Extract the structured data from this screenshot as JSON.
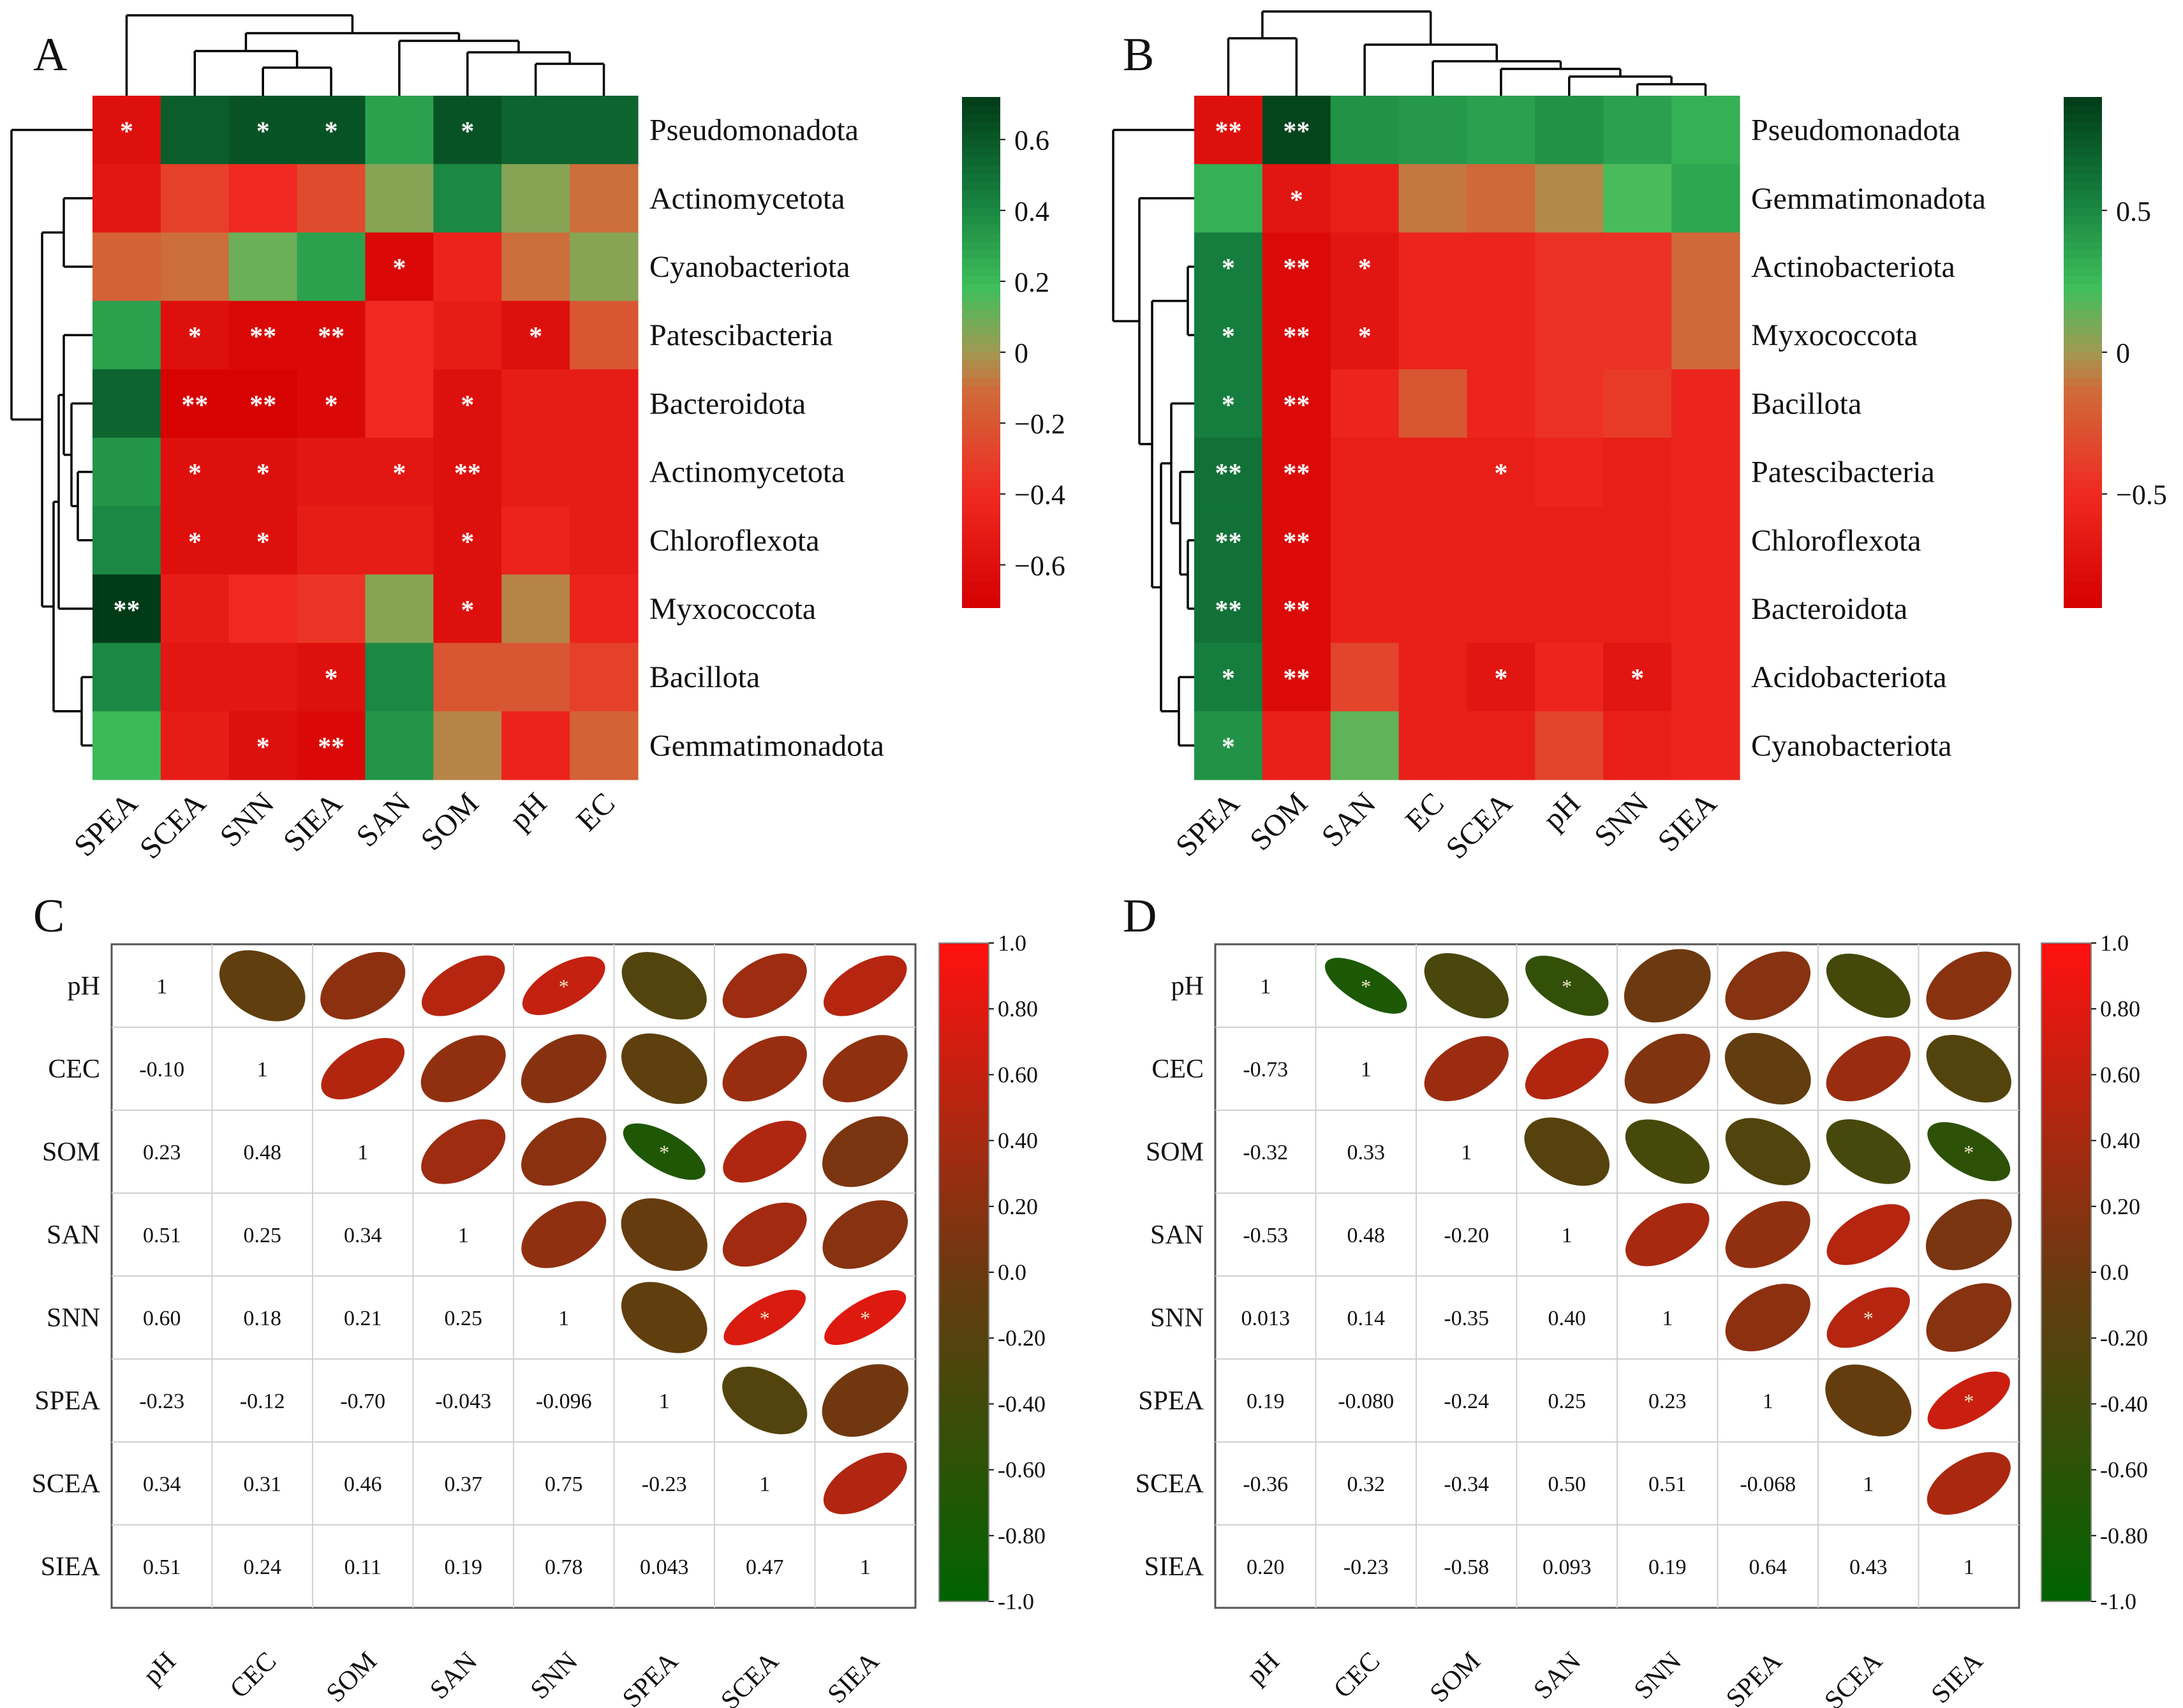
{
  "chart_data": [
    {
      "type": "heatmap",
      "panel": "A",
      "rows": [
        "Pseudomonadota",
        "Actinomycetota",
        "Cyanobacteriota",
        "Patescibacteria",
        "Bacteroidota",
        "Actinomycetota",
        "Chloroflexota",
        "Myxococcota",
        "Bacillota",
        "Gemmatimonadota"
      ],
      "columns": [
        "SPEA",
        "SCEA",
        "SNN",
        "SIEA",
        "SAN",
        "SOM",
        "pH",
        "EC"
      ],
      "values": [
        [
          -0.6,
          0.58,
          0.62,
          0.62,
          0.3,
          0.62,
          0.55,
          0.55
        ],
        [
          -0.55,
          -0.3,
          -0.4,
          -0.25,
          0.05,
          0.4,
          0.05,
          -0.1
        ],
        [
          -0.15,
          -0.1,
          0.1,
          0.3,
          -0.65,
          -0.45,
          -0.1,
          0.05
        ],
        [
          0.3,
          -0.6,
          -0.65,
          -0.65,
          -0.4,
          -0.5,
          -0.6,
          -0.2
        ],
        [
          0.55,
          -0.7,
          -0.7,
          -0.65,
          -0.4,
          -0.6,
          -0.5,
          -0.5
        ],
        [
          0.35,
          -0.6,
          -0.6,
          -0.55,
          -0.55,
          -0.6,
          -0.5,
          -0.5
        ],
        [
          0.4,
          -0.6,
          -0.6,
          -0.5,
          -0.5,
          -0.6,
          -0.45,
          -0.5
        ],
        [
          0.72,
          -0.5,
          -0.4,
          -0.35,
          0.05,
          -0.6,
          -0.05,
          -0.45
        ],
        [
          0.4,
          -0.55,
          -0.55,
          -0.6,
          0.4,
          -0.2,
          -0.2,
          -0.3
        ],
        [
          0.2,
          -0.5,
          -0.6,
          -0.65,
          0.35,
          -0.05,
          -0.45,
          -0.15
        ]
      ],
      "stars": [
        [
          "*",
          "",
          "*",
          "*",
          "",
          "*",
          "",
          ""
        ],
        [
          "",
          "",
          "",
          "",
          "",
          "",
          "",
          ""
        ],
        [
          "",
          "",
          "",
          "",
          "*",
          "",
          "",
          ""
        ],
        [
          "",
          "*",
          "**",
          "**",
          "",
          "",
          "*",
          ""
        ],
        [
          "",
          "**",
          "**",
          "*",
          "",
          "*",
          "",
          ""
        ],
        [
          "",
          "*",
          "*",
          "",
          "*",
          "**",
          "",
          ""
        ],
        [
          "",
          "*",
          "*",
          "",
          "",
          "*",
          "",
          ""
        ],
        [
          "**",
          "",
          "",
          "",
          "",
          "*",
          "",
          ""
        ],
        [
          "",
          "",
          "",
          "*",
          "",
          "",
          "",
          ""
        ],
        [
          "",
          "",
          "*",
          "**",
          "",
          "",
          "",
          ""
        ]
      ],
      "colorbar": {
        "min": -0.72,
        "max": 0.72,
        "ticks": [
          "0.6",
          "0.4",
          "0.2",
          "0",
          "−0.2",
          "−0.4",
          "−0.6"
        ],
        "tick_values": [
          0.6,
          0.4,
          0.2,
          0,
          -0.2,
          -0.4,
          -0.6
        ]
      },
      "colors": {
        "low": "#d40000",
        "mid": "#a08c50",
        "high": "#003d1a"
      }
    },
    {
      "type": "heatmap",
      "panel": "B",
      "rows": [
        "Pseudomonadota",
        "Gemmatimonadota",
        "Actinobacteriota",
        "Myxococcota",
        "Bacillota",
        "Patescibacteria",
        "Chloroflexota",
        "Bacteroidota",
        "Acidobacteriota",
        "Cyanobacteriota"
      ],
      "columns": [
        "SPEA",
        "SOM",
        "SAN",
        "EC",
        "SCEA",
        "pH",
        "SNN",
        "SIEA"
      ],
      "values": [
        [
          -0.75,
          0.85,
          0.45,
          0.42,
          0.38,
          0.45,
          0.38,
          0.3
        ],
        [
          0.3,
          -0.7,
          -0.6,
          -0.1,
          -0.15,
          -0.05,
          0.2,
          0.35
        ],
        [
          0.55,
          -0.8,
          -0.7,
          -0.55,
          -0.55,
          -0.45,
          -0.45,
          -0.15
        ],
        [
          0.55,
          -0.8,
          -0.7,
          -0.55,
          -0.55,
          -0.45,
          -0.45,
          -0.15
        ],
        [
          0.55,
          -0.8,
          -0.55,
          -0.25,
          -0.55,
          -0.45,
          -0.4,
          -0.55
        ],
        [
          0.62,
          -0.8,
          -0.6,
          -0.6,
          -0.6,
          -0.55,
          -0.6,
          -0.55
        ],
        [
          0.62,
          -0.8,
          -0.6,
          -0.6,
          -0.6,
          -0.6,
          -0.6,
          -0.55
        ],
        [
          0.62,
          -0.8,
          -0.6,
          -0.6,
          -0.6,
          -0.6,
          -0.6,
          -0.55
        ],
        [
          0.55,
          -0.8,
          -0.35,
          -0.6,
          -0.7,
          -0.55,
          -0.7,
          -0.55
        ],
        [
          0.45,
          -0.6,
          0.15,
          -0.6,
          -0.6,
          -0.35,
          -0.6,
          -0.55
        ]
      ],
      "stars": [
        [
          "**",
          "**",
          "",
          "",
          "",
          "",
          "",
          ""
        ],
        [
          "",
          "*",
          "",
          "",
          "",
          "",
          "",
          ""
        ],
        [
          "*",
          "**",
          "*",
          "",
          "",
          "",
          "",
          ""
        ],
        [
          "*",
          "**",
          "*",
          "",
          "",
          "",
          "",
          ""
        ],
        [
          "*",
          "**",
          "",
          "",
          "",
          "",
          "",
          ""
        ],
        [
          "**",
          "**",
          "",
          "",
          "*",
          "",
          "",
          ""
        ],
        [
          "**",
          "**",
          "",
          "",
          "",
          "",
          "",
          ""
        ],
        [
          "**",
          "**",
          "",
          "",
          "",
          "",
          "",
          ""
        ],
        [
          "*",
          "**",
          "",
          "",
          "*",
          "",
          "*",
          ""
        ],
        [
          "*",
          "",
          "",
          "",
          "",
          "",
          "",
          ""
        ]
      ],
      "colorbar": {
        "min": -0.9,
        "max": 0.9,
        "ticks": [
          "0.5",
          "0",
          "−0.5"
        ],
        "tick_values": [
          0.5,
          0,
          -0.5
        ]
      },
      "colors": {
        "low": "#d40000",
        "mid": "#a08c50",
        "high": "#003d1a"
      }
    },
    {
      "type": "correlation-matrix",
      "panel": "C",
      "variables": [
        "pH",
        "CEC",
        "SOM",
        "SAN",
        "SNN",
        "SPEA",
        "SCEA",
        "SIEA"
      ],
      "lower_labels": [
        [],
        [
          "-0.10"
        ],
        [
          "0.23",
          "0.48"
        ],
        [
          "0.51",
          "0.25",
          "0.34"
        ],
        [
          "0.60",
          "0.18",
          "0.21",
          "0.25"
        ],
        [
          "-0.23",
          "-0.12",
          "-0.70",
          "-0.043",
          "-0.096"
        ],
        [
          "0.34",
          "0.31",
          "0.46",
          "0.37",
          "0.75",
          "-0.23"
        ],
        [
          "0.51",
          "0.24",
          "0.11",
          "0.19",
          "0.78",
          "0.043",
          "0.47"
        ]
      ],
      "lower_values": [
        [],
        [
          -0.1
        ],
        [
          0.23,
          0.48
        ],
        [
          0.51,
          0.25,
          0.34
        ],
        [
          0.6,
          0.18,
          0.21,
          0.25
        ],
        [
          -0.23,
          -0.12,
          -0.7,
          -0.043,
          -0.096
        ],
        [
          0.34,
          0.31,
          0.46,
          0.37,
          0.75,
          -0.23
        ],
        [
          0.51,
          0.24,
          0.11,
          0.19,
          0.78,
          0.043,
          0.47
        ]
      ],
      "diagonal_label": "1",
      "star_cells": [
        [
          0,
          4
        ],
        [
          2,
          5
        ],
        [
          4,
          6
        ],
        [
          4,
          7
        ]
      ],
      "star_text": "*",
      "colorbar": {
        "min": -1.0,
        "max": 1.0,
        "ticks": [
          "1.0",
          "0.80",
          "0.60",
          "0.40",
          "0.20",
          "0.0",
          "-0.20",
          "-0.40",
          "-0.60",
          "-0.80",
          "-1.0"
        ],
        "tick_values": [
          1,
          0.8,
          0.6,
          0.4,
          0.2,
          0,
          -0.2,
          -0.4,
          -0.6,
          -0.8,
          -1
        ]
      },
      "colors": {
        "negative": "#006400",
        "zero": "#6b3a10",
        "positive": "#ff1010"
      }
    },
    {
      "type": "correlation-matrix",
      "panel": "D",
      "variables": [
        "pH",
        "CEC",
        "SOM",
        "SAN",
        "SNN",
        "SPEA",
        "SCEA",
        "SIEA"
      ],
      "lower_labels": [
        [],
        [
          "-0.73"
        ],
        [
          "-0.32",
          "0.33"
        ],
        [
          "-0.53",
          "0.48",
          "-0.20"
        ],
        [
          "0.013",
          "0.14",
          "-0.35",
          "0.40"
        ],
        [
          "0.19",
          "-0.080",
          "-0.24",
          "0.25",
          "0.23"
        ],
        [
          "-0.36",
          "0.32",
          "-0.34",
          "0.50",
          "0.51",
          "-0.068"
        ],
        [
          "0.20",
          "-0.23",
          "-0.58",
          "0.093",
          "0.19",
          "0.64",
          "0.43"
        ]
      ],
      "lower_values": [
        [],
        [
          -0.73
        ],
        [
          -0.32,
          0.33
        ],
        [
          -0.53,
          0.48,
          -0.2
        ],
        [
          0.013,
          0.14,
          -0.35,
          0.4
        ],
        [
          0.19,
          -0.08,
          -0.24,
          0.25,
          0.23
        ],
        [
          -0.36,
          0.32,
          -0.34,
          0.5,
          0.51,
          -0.068
        ],
        [
          0.2,
          -0.23,
          -0.58,
          0.093,
          0.19,
          0.64,
          0.43
        ]
      ],
      "diagonal_label": "1",
      "star_cells": [
        [
          0,
          1
        ],
        [
          0,
          3
        ],
        [
          2,
          7
        ],
        [
          4,
          6
        ],
        [
          5,
          7
        ]
      ],
      "star_text": "*",
      "colorbar": {
        "min": -1.0,
        "max": 1.0,
        "ticks": [
          "1.0",
          "0.80",
          "0.60",
          "0.40",
          "0.20",
          "0.0",
          "-0.20",
          "-0.40",
          "-0.60",
          "-0.80",
          "-1.0"
        ],
        "tick_values": [
          1,
          0.8,
          0.6,
          0.4,
          0.2,
          0,
          -0.2,
          -0.4,
          -0.6,
          -0.8,
          -1
        ]
      },
      "colors": {
        "negative": "#006400",
        "zero": "#6b3a10",
        "positive": "#ff1010"
      }
    }
  ]
}
